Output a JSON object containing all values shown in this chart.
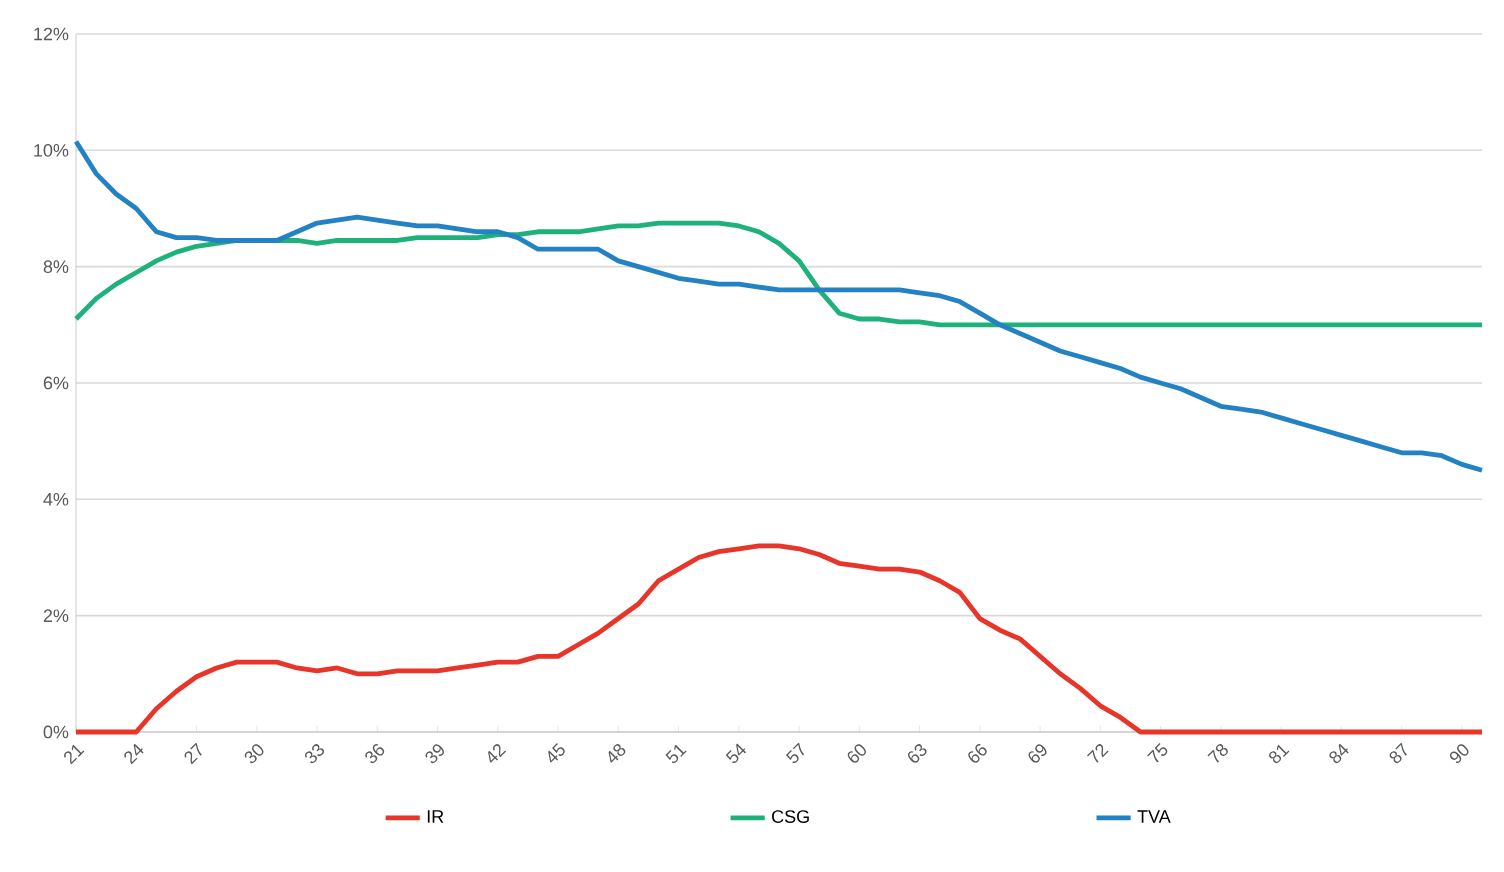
{
  "chart_data": {
    "type": "line",
    "x": [
      21,
      22,
      23,
      24,
      25,
      26,
      27,
      28,
      29,
      30,
      31,
      32,
      33,
      34,
      35,
      36,
      37,
      38,
      39,
      40,
      41,
      42,
      43,
      44,
      45,
      46,
      47,
      48,
      49,
      50,
      51,
      52,
      53,
      54,
      55,
      56,
      57,
      58,
      59,
      60,
      61,
      62,
      63,
      64,
      65,
      66,
      67,
      68,
      69,
      70,
      71,
      72,
      73,
      74,
      75,
      76,
      77,
      78,
      79,
      80,
      81,
      82,
      83,
      84,
      85,
      86,
      87,
      88,
      89,
      90,
      91
    ],
    "series": [
      {
        "name": "IR",
        "color": "#e8352a",
        "values": [
          0,
          0,
          0,
          0,
          0.4,
          0.7,
          0.95,
          1.1,
          1.2,
          1.2,
          1.2,
          1.1,
          1.05,
          1.1,
          1.0,
          1.0,
          1.05,
          1.05,
          1.05,
          1.1,
          1.15,
          1.2,
          1.2,
          1.3,
          1.3,
          1.5,
          1.7,
          1.95,
          2.2,
          2.6,
          2.8,
          3.0,
          3.1,
          3.15,
          3.2,
          3.2,
          3.15,
          3.05,
          2.9,
          2.85,
          2.8,
          2.8,
          2.75,
          2.6,
          2.4,
          1.95,
          1.75,
          1.6,
          1.3,
          1.0,
          0.75,
          0.45,
          0.25,
          0,
          0,
          0,
          0,
          0,
          0,
          0,
          0,
          0,
          0,
          0,
          0,
          0,
          0,
          0,
          0,
          0,
          0
        ]
      },
      {
        "name": "CSG",
        "color": "#1eb27a",
        "values": [
          7.1,
          7.45,
          7.7,
          7.9,
          8.1,
          8.25,
          8.35,
          8.4,
          8.45,
          8.45,
          8.45,
          8.45,
          8.4,
          8.45,
          8.45,
          8.45,
          8.45,
          8.5,
          8.5,
          8.5,
          8.5,
          8.55,
          8.55,
          8.6,
          8.6,
          8.6,
          8.65,
          8.7,
          8.7,
          8.75,
          8.75,
          8.75,
          8.75,
          8.7,
          8.6,
          8.4,
          8.1,
          7.6,
          7.2,
          7.1,
          7.1,
          7.05,
          7.05,
          7.0,
          7.0,
          7.0,
          7.0,
          7.0,
          7.0,
          7.0,
          7.0,
          7.0,
          7.0,
          7.0,
          7.0,
          7.0,
          7.0,
          7.0,
          7.0,
          7.0,
          7.0,
          7.0,
          7.0,
          7.0,
          7.0,
          7.0,
          7.0,
          7.0,
          7.0,
          7.0,
          7.0
        ]
      },
      {
        "name": "TVA",
        "color": "#2382c4",
        "values": [
          10.15,
          9.6,
          9.25,
          9.0,
          8.6,
          8.5,
          8.5,
          8.45,
          8.45,
          8.45,
          8.45,
          8.6,
          8.75,
          8.8,
          8.85,
          8.8,
          8.75,
          8.7,
          8.7,
          8.65,
          8.6,
          8.6,
          8.5,
          8.3,
          8.3,
          8.3,
          8.3,
          8.1,
          8.0,
          7.9,
          7.8,
          7.75,
          7.7,
          7.7,
          7.65,
          7.6,
          7.6,
          7.6,
          7.6,
          7.6,
          7.6,
          7.6,
          7.55,
          7.5,
          7.4,
          7.2,
          7.0,
          6.85,
          6.7,
          6.55,
          6.45,
          6.35,
          6.25,
          6.1,
          6.0,
          5.9,
          5.75,
          5.6,
          5.55,
          5.5,
          5.4,
          5.3,
          5.2,
          5.1,
          5.0,
          4.9,
          4.8,
          4.8,
          4.75,
          4.6,
          4.5
        ]
      }
    ],
    "xlim": [
      21,
      91
    ],
    "xticks": [
      21,
      24,
      27,
      30,
      33,
      36,
      39,
      42,
      45,
      48,
      51,
      54,
      57,
      60,
      63,
      66,
      69,
      72,
      75,
      78,
      81,
      84,
      87,
      90
    ],
    "ylim": [
      0,
      12
    ],
    "yticks": [
      {
        "value": 0,
        "label": "0%"
      },
      {
        "value": 2,
        "label": "2%"
      },
      {
        "value": 4,
        "label": "4%"
      },
      {
        "value": 6,
        "label": "6%"
      },
      {
        "value": 8,
        "label": "8%"
      },
      {
        "value": 10,
        "label": "10%"
      },
      {
        "value": 12,
        "label": "12%"
      }
    ],
    "grid": "y",
    "legend": "bottom",
    "marker": "none",
    "line_style": "solid"
  }
}
